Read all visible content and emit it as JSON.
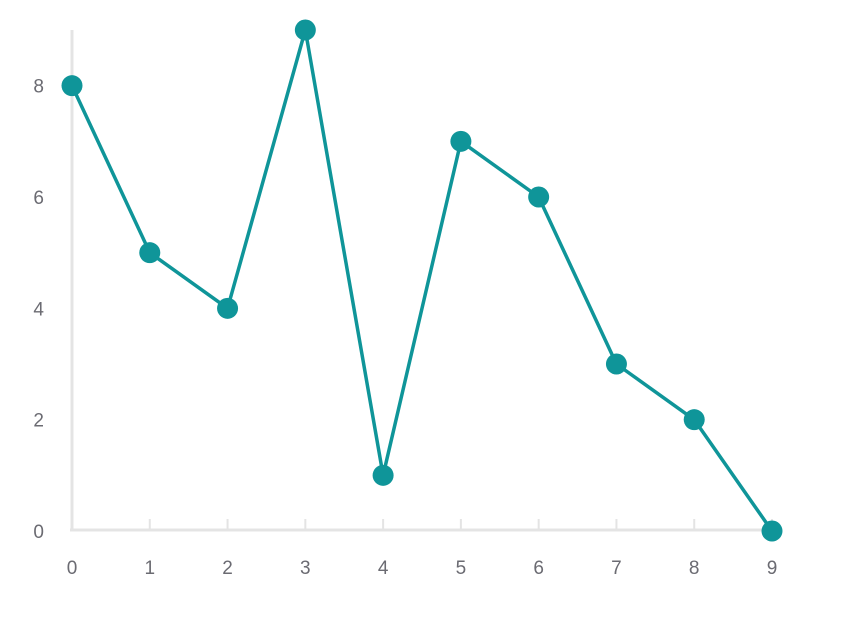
{
  "chart_data": {
    "type": "line",
    "x": [
      0,
      1,
      2,
      3,
      4,
      5,
      6,
      7,
      8,
      9
    ],
    "series": [
      {
        "values": [
          8,
          5,
          4,
          9,
          1,
          7,
          6,
          3,
          2,
          0
        ]
      }
    ],
    "x_ticks": [
      "0",
      "1",
      "2",
      "3",
      "4",
      "5",
      "6",
      "7",
      "8",
      "9"
    ],
    "y_ticks": [
      "0",
      "2",
      "4",
      "6",
      "8"
    ],
    "xlim": [
      0,
      9
    ],
    "ylim": [
      0,
      9
    ],
    "grid": false,
    "color": "#0f9599",
    "axis_color": "#e4e4e4",
    "label_color": "#6b6b72"
  }
}
